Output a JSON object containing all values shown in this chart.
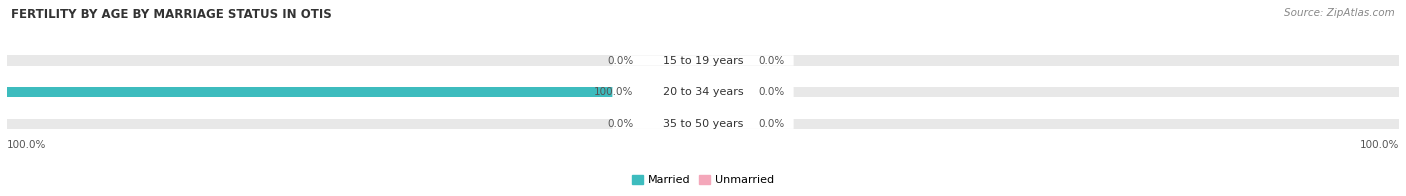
{
  "title": "FERTILITY BY AGE BY MARRIAGE STATUS IN OTIS",
  "source": "Source: ZipAtlas.com",
  "categories": [
    "15 to 19 years",
    "20 to 34 years",
    "35 to 50 years"
  ],
  "married": [
    0.0,
    100.0,
    0.0
  ],
  "unmarried": [
    0.0,
    0.0,
    0.0
  ],
  "married_color": "#3dbcbe",
  "unmarried_color": "#f4a7ba",
  "bar_bg_color": "#e8e8e8",
  "bar_height": 0.32,
  "xlim": [
    -100,
    100
  ],
  "legend_married": "Married",
  "legend_unmarried": "Unmarried",
  "left_label": "100.0%",
  "right_label": "100.0%",
  "title_fontsize": 8.5,
  "source_fontsize": 7.5,
  "label_fontsize": 8,
  "value_fontsize": 7.5,
  "figsize": [
    14.06,
    1.96
  ],
  "dpi": 100
}
